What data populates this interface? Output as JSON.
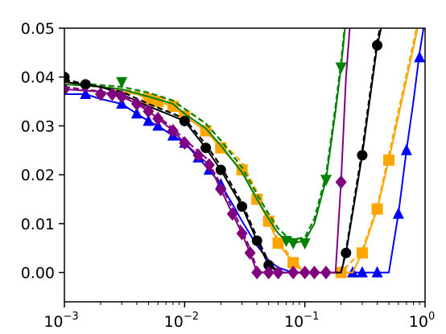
{
  "chart_data": {
    "type": "line",
    "title": "",
    "xlabel": "",
    "ylabel": "",
    "x_scale": "log",
    "xlim": [
      0.001,
      1
    ],
    "ylim": [
      -0.006,
      0.05
    ],
    "grid": false,
    "x_ticks": [
      {
        "value": 0.001,
        "base": "10",
        "exp": "−3"
      },
      {
        "value": 0.01,
        "base": "10",
        "exp": "−2"
      },
      {
        "value": 0.1,
        "base": "10",
        "exp": "−1"
      },
      {
        "value": 1,
        "base": "10",
        "exp": "0"
      }
    ],
    "y_ticks": [
      {
        "value": 0.0,
        "label": "0.00"
      },
      {
        "value": 0.01,
        "label": "0.01"
      },
      {
        "value": 0.02,
        "label": "0.02"
      },
      {
        "value": 0.03,
        "label": "0.03"
      },
      {
        "value": 0.04,
        "label": "0.04"
      },
      {
        "value": 0.05,
        "label": "0.05"
      }
    ],
    "series": [
      {
        "color": "#0000ff",
        "marker": "triangle-up",
        "points": [
          [
            0.001,
            0.0365
          ],
          [
            0.0015,
            0.0365
          ],
          [
            0.002,
            0.0355
          ],
          [
            0.003,
            0.0345
          ],
          [
            0.004,
            0.0325
          ],
          [
            0.005,
            0.031
          ],
          [
            0.006,
            0.03
          ],
          [
            0.008,
            0.028
          ],
          [
            0.01,
            0.0265
          ],
          [
            0.013,
            0.0235
          ],
          [
            0.016,
            0.021
          ],
          [
            0.02,
            0.018
          ],
          [
            0.025,
            0.014
          ],
          [
            0.03,
            0.0105
          ],
          [
            0.04,
            0.0055
          ],
          [
            0.05,
            0.0025
          ],
          [
            0.06,
            0.001
          ],
          [
            0.08,
            0.0
          ],
          [
            0.1,
            0.0
          ],
          [
            0.15,
            0.0
          ],
          [
            0.2,
            0.0
          ],
          [
            0.25,
            0.0
          ],
          [
            0.3,
            0.0
          ],
          [
            0.4,
            0.0
          ],
          [
            0.45,
            0.0
          ],
          [
            0.5,
            0.0
          ],
          [
            0.6,
            0.012
          ],
          [
            0.7,
            0.025
          ],
          [
            0.8,
            0.035
          ],
          [
            0.9,
            0.045
          ],
          [
            1.0,
            0.052
          ]
        ],
        "markers": [
          [
            0.0015,
            0.0365
          ],
          [
            0.003,
            0.0345
          ],
          [
            0.004,
            0.0325
          ],
          [
            0.005,
            0.031
          ],
          [
            0.006,
            0.03
          ],
          [
            0.008,
            0.028
          ],
          [
            0.01,
            0.0265
          ],
          [
            0.013,
            0.0235
          ],
          [
            0.016,
            0.021
          ],
          [
            0.02,
            0.018
          ],
          [
            0.25,
            0.0
          ],
          [
            0.3,
            0.0
          ],
          [
            0.4,
            0.0
          ],
          [
            0.6,
            0.012
          ],
          [
            0.7,
            0.025
          ],
          [
            0.9,
            0.044
          ]
        ]
      },
      {
        "color": "#ffa500",
        "marker": "square",
        "points": [
          [
            0.001,
            0.0385
          ],
          [
            0.002,
            0.038
          ],
          [
            0.003,
            0.037
          ],
          [
            0.004,
            0.0365
          ],
          [
            0.005,
            0.0355
          ],
          [
            0.006,
            0.035
          ],
          [
            0.008,
            0.034
          ],
          [
            0.01,
            0.032
          ],
          [
            0.015,
            0.029
          ],
          [
            0.02,
            0.0255
          ],
          [
            0.03,
            0.021
          ],
          [
            0.04,
            0.015
          ],
          [
            0.05,
            0.0105
          ],
          [
            0.06,
            0.006
          ],
          [
            0.08,
            0.002
          ],
          [
            0.1,
            0.0
          ],
          [
            0.15,
            0.0
          ],
          [
            0.2,
            0.0
          ],
          [
            0.25,
            0.0
          ],
          [
            0.3,
            0.004
          ],
          [
            0.4,
            0.013
          ],
          [
            0.5,
            0.023
          ],
          [
            0.6,
            0.032
          ],
          [
            0.8,
            0.046
          ],
          [
            0.9,
            0.052
          ]
        ],
        "markers": [
          [
            0.005,
            0.0355
          ],
          [
            0.006,
            0.035
          ],
          [
            0.008,
            0.034
          ],
          [
            0.01,
            0.032
          ],
          [
            0.015,
            0.029
          ],
          [
            0.02,
            0.0255
          ],
          [
            0.03,
            0.021
          ],
          [
            0.04,
            0.015
          ],
          [
            0.05,
            0.0105
          ],
          [
            0.06,
            0.006
          ],
          [
            0.08,
            0.002
          ],
          [
            0.2,
            0.0
          ],
          [
            0.3,
            0.004
          ],
          [
            0.4,
            0.013
          ],
          [
            0.5,
            0.023
          ]
        ],
        "dashed": {
          "color": "#ffa500",
          "points": [
            [
              0.001,
              0.039
            ],
            [
              0.003,
              0.0375
            ],
            [
              0.005,
              0.0365
            ],
            [
              0.008,
              0.035
            ],
            [
              0.01,
              0.0335
            ],
            [
              0.015,
              0.0305
            ],
            [
              0.02,
              0.027
            ],
            [
              0.03,
              0.0225
            ],
            [
              0.04,
              0.0165
            ],
            [
              0.05,
              0.0115
            ],
            [
              0.06,
              0.0065
            ],
            [
              0.08,
              0.0025
            ],
            [
              0.1,
              0.0
            ],
            [
              0.2,
              0.0
            ],
            [
              0.3,
              0.0045
            ],
            [
              0.4,
              0.0135
            ],
            [
              0.5,
              0.024
            ],
            [
              0.6,
              0.033
            ],
            [
              0.8,
              0.047
            ],
            [
              0.9,
              0.053
            ]
          ]
        }
      },
      {
        "color": "#008000",
        "marker": "triangle-down",
        "points": [
          [
            0.001,
            0.0385
          ],
          [
            0.002,
            0.038
          ],
          [
            0.003,
            0.0375
          ],
          [
            0.005,
            0.036
          ],
          [
            0.008,
            0.0345
          ],
          [
            0.01,
            0.0325
          ],
          [
            0.015,
            0.0295
          ],
          [
            0.02,
            0.026
          ],
          [
            0.03,
            0.0205
          ],
          [
            0.04,
            0.015
          ],
          [
            0.05,
            0.011
          ],
          [
            0.06,
            0.008
          ],
          [
            0.07,
            0.0065
          ],
          [
            0.08,
            0.006
          ],
          [
            0.1,
            0.0065
          ],
          [
            0.12,
            0.01
          ],
          [
            0.15,
            0.019
          ],
          [
            0.18,
            0.033
          ],
          [
            0.2,
            0.042
          ],
          [
            0.22,
            0.052
          ]
        ],
        "markers": [
          [
            0.003,
            0.039
          ],
          [
            0.07,
            0.0065
          ],
          [
            0.08,
            0.006
          ],
          [
            0.1,
            0.006
          ],
          [
            0.15,
            0.019
          ],
          [
            0.2,
            0.042
          ]
        ],
        "dashed": {
          "color": "#008000",
          "points": [
            [
              0.001,
              0.039
            ],
            [
              0.003,
              0.038
            ],
            [
              0.005,
              0.0368
            ],
            [
              0.008,
              0.0352
            ],
            [
              0.01,
              0.0335
            ],
            [
              0.015,
              0.0305
            ],
            [
              0.02,
              0.027
            ],
            [
              0.03,
              0.0215
            ],
            [
              0.04,
              0.016
            ],
            [
              0.05,
              0.012
            ],
            [
              0.06,
              0.009
            ],
            [
              0.07,
              0.0075
            ],
            [
              0.08,
              0.0068
            ],
            [
              0.1,
              0.0072
            ],
            [
              0.12,
              0.011
            ],
            [
              0.15,
              0.02
            ],
            [
              0.18,
              0.034
            ],
            [
              0.2,
              0.043
            ],
            [
              0.22,
              0.053
            ]
          ]
        }
      },
      {
        "color": "#000000",
        "marker": "circle",
        "points": [
          [
            0.001,
            0.039
          ],
          [
            0.002,
            0.038
          ],
          [
            0.003,
            0.0365
          ],
          [
            0.005,
            0.034
          ],
          [
            0.008,
            0.032
          ],
          [
            0.01,
            0.031
          ],
          [
            0.015,
            0.0255
          ],
          [
            0.02,
            0.021
          ],
          [
            0.03,
            0.0135
          ],
          [
            0.04,
            0.0065
          ],
          [
            0.05,
            0.0015
          ],
          [
            0.06,
            0.0
          ],
          [
            0.1,
            0.0
          ],
          [
            0.15,
            0.0
          ],
          [
            0.2,
            0.0
          ],
          [
            0.22,
            0.004
          ],
          [
            0.3,
            0.024
          ],
          [
            0.4,
            0.0465
          ],
          [
            0.45,
            0.052
          ]
        ],
        "markers": [
          [
            0.001,
            0.04
          ],
          [
            0.0015,
            0.0385
          ],
          [
            0.01,
            0.031
          ],
          [
            0.015,
            0.0255
          ],
          [
            0.02,
            0.021
          ],
          [
            0.03,
            0.0135
          ],
          [
            0.04,
            0.0065
          ],
          [
            0.05,
            0.0015
          ],
          [
            0.22,
            0.004
          ],
          [
            0.3,
            0.024
          ],
          [
            0.4,
            0.0465
          ]
        ],
        "dashed": {
          "color": "#000000",
          "points": [
            [
              0.001,
              0.0395
            ],
            [
              0.003,
              0.037
            ],
            [
              0.005,
              0.0345
            ],
            [
              0.008,
              0.0325
            ],
            [
              0.01,
              0.0315
            ],
            [
              0.015,
              0.0262
            ],
            [
              0.02,
              0.0218
            ],
            [
              0.03,
              0.0142
            ],
            [
              0.04,
              0.0072
            ],
            [
              0.05,
              0.0022
            ],
            [
              0.06,
              0.0
            ],
            [
              0.2,
              0.0
            ],
            [
              0.22,
              0.0045
            ],
            [
              0.3,
              0.025
            ],
            [
              0.4,
              0.0475
            ],
            [
              0.45,
              0.053
            ]
          ]
        }
      },
      {
        "color": "#800080",
        "marker": "diamond",
        "points": [
          [
            0.001,
            0.0375
          ],
          [
            0.002,
            0.037
          ],
          [
            0.003,
            0.036
          ],
          [
            0.004,
            0.0345
          ],
          [
            0.005,
            0.033
          ],
          [
            0.006,
            0.0315
          ],
          [
            0.008,
            0.029
          ],
          [
            0.01,
            0.0265
          ],
          [
            0.013,
            0.024
          ],
          [
            0.016,
            0.022
          ],
          [
            0.02,
            0.017
          ],
          [
            0.025,
            0.012
          ],
          [
            0.03,
            0.008
          ],
          [
            0.035,
            0.004
          ],
          [
            0.04,
            0.0
          ],
          [
            0.06,
            0.0
          ],
          [
            0.1,
            0.0
          ],
          [
            0.15,
            0.0
          ],
          [
            0.18,
            0.0
          ],
          [
            0.2,
            0.0185
          ],
          [
            0.22,
            0.04
          ],
          [
            0.24,
            0.052
          ]
        ],
        "markers": [
          [
            0.001,
            0.0375
          ],
          [
            0.002,
            0.0365
          ],
          [
            0.0025,
            0.0365
          ],
          [
            0.003,
            0.036
          ],
          [
            0.004,
            0.0345
          ],
          [
            0.005,
            0.033
          ],
          [
            0.006,
            0.0315
          ],
          [
            0.008,
            0.029
          ],
          [
            0.01,
            0.0265
          ],
          [
            0.013,
            0.024
          ],
          [
            0.016,
            0.022
          ],
          [
            0.02,
            0.017
          ],
          [
            0.025,
            0.012
          ],
          [
            0.03,
            0.008
          ],
          [
            0.035,
            0.004
          ],
          [
            0.04,
            0.0
          ],
          [
            0.05,
            0.0
          ],
          [
            0.06,
            0.0
          ],
          [
            0.08,
            0.0
          ],
          [
            0.1,
            0.0
          ],
          [
            0.12,
            0.0
          ],
          [
            0.15,
            0.0
          ],
          [
            0.2,
            0.0185
          ]
        ],
        "dashed": {
          "color": "#800080",
          "points": [
            [
              0.001,
              0.038
            ],
            [
              0.003,
              0.0365
            ],
            [
              0.005,
              0.0335
            ],
            [
              0.008,
              0.0295
            ],
            [
              0.01,
              0.0272
            ],
            [
              0.015,
              0.0235
            ],
            [
              0.02,
              0.018
            ],
            [
              0.025,
              0.013
            ],
            [
              0.03,
              0.0088
            ],
            [
              0.035,
              0.0048
            ],
            [
              0.04,
              0.0008
            ],
            [
              0.045,
              0.0
            ]
          ]
        }
      }
    ]
  }
}
